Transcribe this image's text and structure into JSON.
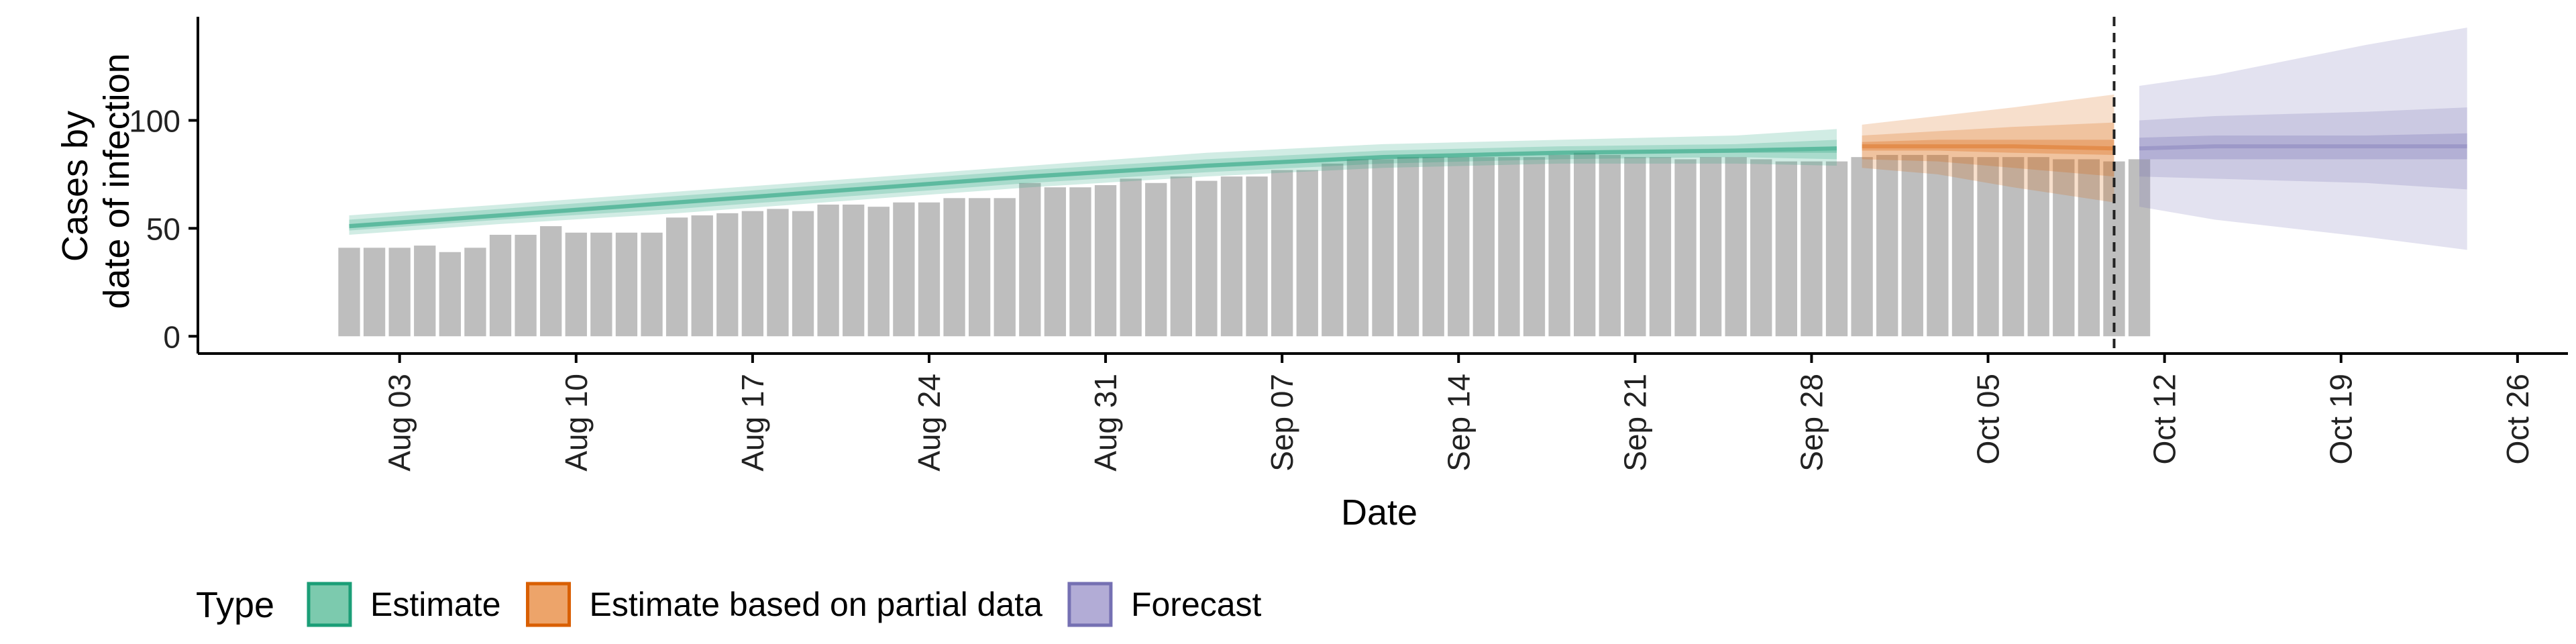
{
  "chart_data": {
    "type": "bar",
    "ylabel_lines": [
      "Cases by",
      "date of infection"
    ],
    "xlabel": "Date",
    "ylim": [
      -8,
      148
    ],
    "yticks": [
      0,
      50,
      100
    ],
    "xlim": [
      "2020-07-26",
      "2020-10-28"
    ],
    "xticks": [
      "2020-08-03",
      "2020-08-10",
      "2020-08-17",
      "2020-08-24",
      "2020-08-31",
      "2020-09-07",
      "2020-09-14",
      "2020-09-21",
      "2020-09-28",
      "2020-10-05",
      "2020-10-12",
      "2020-10-19",
      "2020-10-26"
    ],
    "xtick_labels": [
      "Aug 03",
      "Aug 10",
      "Aug 17",
      "Aug 24",
      "Aug 31",
      "Sep 07",
      "Sep 14",
      "Sep 21",
      "Sep 28",
      "Oct 05",
      "Oct 12",
      "Oct 19",
      "Oct 26"
    ],
    "vline_date": "2020-10-10",
    "bars": {
      "start": "2020-08-01",
      "values": [
        41,
        41,
        41,
        42,
        39,
        41,
        47,
        47,
        51,
        48,
        48,
        48,
        48,
        55,
        56,
        57,
        58,
        59,
        58,
        61,
        61,
        60,
        62,
        62,
        64,
        64,
        64,
        71,
        69,
        69,
        70,
        73,
        71,
        74,
        72,
        74,
        74,
        77,
        77,
        80,
        82,
        82,
        83,
        83,
        83,
        83,
        83,
        83,
        84,
        85,
        84,
        83,
        83,
        82,
        83,
        83,
        82,
        81,
        81,
        81,
        83,
        84,
        84,
        84,
        83,
        83,
        83,
        83,
        82,
        82,
        81,
        82
      ]
    },
    "bands": [
      {
        "type": "Estimate",
        "dates": [
          "2020-08-01",
          "2020-08-07",
          "2020-08-14",
          "2020-08-21",
          "2020-08-28",
          "2020-09-04",
          "2020-09-11",
          "2020-09-18",
          "2020-09-25",
          "2020-09-29"
        ],
        "median": [
          51,
          56,
          62,
          68,
          74,
          79,
          83,
          85,
          86,
          87
        ],
        "inner_low": [
          50,
          55,
          61,
          67,
          73,
          78,
          82,
          84,
          85,
          85
        ],
        "inner_high": [
          52,
          57,
          63,
          69,
          75,
          80,
          84,
          86,
          87,
          88
        ],
        "mid_low": [
          49,
          54,
          59,
          65,
          71,
          76,
          80,
          82,
          83,
          82
        ],
        "mid_high": [
          54,
          59,
          65,
          71,
          77,
          82,
          86,
          88,
          89,
          91
        ],
        "outer_low": [
          47,
          52,
          57,
          63,
          69,
          74,
          78,
          80,
          80,
          79
        ],
        "outer_high": [
          56,
          61,
          67,
          73,
          79,
          85,
          89,
          91,
          93,
          96
        ]
      },
      {
        "type": "Estimate based on partial data",
        "dates": [
          "2020-09-30",
          "2020-10-03",
          "2020-10-06",
          "2020-10-10"
        ],
        "median": [
          88,
          88,
          88,
          87
        ],
        "inner_low": [
          86,
          86,
          85,
          84
        ],
        "inner_high": [
          90,
          91,
          91,
          91
        ],
        "mid_low": [
          82,
          81,
          78,
          74
        ],
        "mid_high": [
          93,
          95,
          97,
          99
        ],
        "outer_low": [
          78,
          75,
          69,
          62
        ],
        "outer_high": [
          98,
          102,
          106,
          112
        ]
      },
      {
        "type": "Forecast",
        "dates": [
          "2020-10-11",
          "2020-10-14",
          "2020-10-17",
          "2020-10-20",
          "2020-10-24"
        ],
        "median": [
          87,
          88,
          88,
          88,
          88
        ],
        "inner_low": [
          82,
          82,
          82,
          82,
          82
        ],
        "inner_high": [
          92,
          93,
          93,
          93,
          94
        ],
        "mid_low": [
          74,
          73,
          72,
          71,
          68
        ],
        "mid_high": [
          100,
          102,
          103,
          104,
          106
        ],
        "outer_low": [
          60,
          54,
          50,
          46,
          40
        ],
        "outer_high": [
          116,
          121,
          128,
          135,
          143
        ]
      }
    ],
    "legend": {
      "title": "Type",
      "placement": "bottom-left",
      "entries": [
        {
          "label": "Estimate",
          "fill": "#7ccaae",
          "stroke": "#1b9e77"
        },
        {
          "label": "Estimate based on partial data",
          "fill": "#eda46a",
          "stroke": "#d95f02"
        },
        {
          "label": "Forecast",
          "fill": "#b2acd6",
          "stroke": "#7570b3"
        }
      ]
    }
  },
  "colors": {
    "bar": "#bebebe",
    "estimate": "#1b9e77",
    "partial": "#d95f02",
    "forecast": "#7570b3",
    "axis": "#000000",
    "vline": "#222222"
  }
}
